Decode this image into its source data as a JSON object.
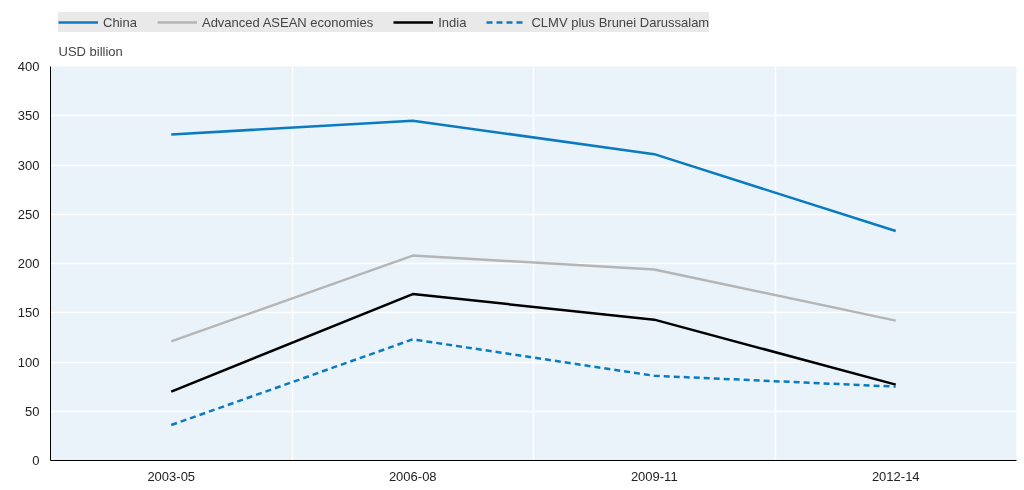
{
  "chart_data": {
    "type": "line",
    "ylabel": "USD billion",
    "categories": [
      "2003-05",
      "2006-08",
      "2009-11",
      "2012-14"
    ],
    "series": [
      {
        "name": "China",
        "color": "#0b7bc1",
        "values": [
          331,
          345,
          311,
          233
        ]
      },
      {
        "name": "Advanced ASEAN economies",
        "color": "#b5b5b5",
        "values": [
          121,
          208,
          194,
          142
        ]
      },
      {
        "name": "India",
        "color": "#000000",
        "values": [
          70,
          169,
          143,
          77
        ]
      },
      {
        "name": "CLMV plus Brunei Darussalam",
        "color": "#0b7bc1",
        "values": [
          36,
          123,
          86,
          75
        ],
        "line_style": "dashed"
      }
    ],
    "ylim": [
      0,
      400
    ],
    "yticks": [
      0,
      50,
      100,
      150,
      200,
      250,
      300,
      350,
      400
    ],
    "grid": true,
    "legend": "top",
    "marker": "none",
    "line_style": "solid"
  }
}
